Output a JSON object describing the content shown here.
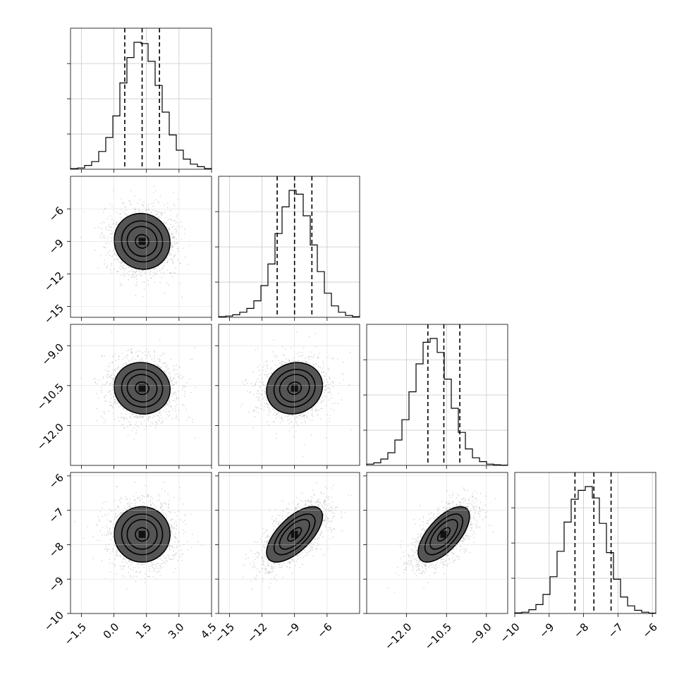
{
  "chart_data": {
    "type": "corner",
    "grid": true,
    "parameters": [
      {
        "id": "p1",
        "range": [
          -2.0,
          4.5
        ],
        "ticks": [
          "-1.5",
          "0.0",
          "1.5",
          "3.0",
          "4.5"
        ],
        "tick_values": [
          -1.5,
          0.0,
          1.5,
          3.0,
          4.5
        ],
        "quantiles": [
          0.5,
          1.3,
          2.1
        ],
        "center": 1.3,
        "sigma": 0.8
      },
      {
        "id": "p2",
        "range": [
          -16.0,
          -3.0
        ],
        "ticks": [
          "-15",
          "-12",
          "-9",
          "-6"
        ],
        "tick_values": [
          -15,
          -12,
          -9,
          -6
        ],
        "quantiles": [
          -10.6,
          -9.0,
          -7.4
        ],
        "center": -9.0,
        "sigma": 1.6
      },
      {
        "id": "p3",
        "range": [
          -13.5,
          -8.2
        ],
        "ticks": [
          "-12.0",
          "-10.5",
          "-9.0"
        ],
        "tick_values": [
          -12.0,
          -10.5,
          -9.0
        ],
        "quantiles": [
          -11.2,
          -10.6,
          -10.0
        ],
        "center": -10.6,
        "sigma": 0.6
      },
      {
        "id": "p4",
        "range": [
          -10.0,
          -5.9
        ],
        "ticks": [
          "-10",
          "-9",
          "-8",
          "-7",
          "-6"
        ],
        "tick_values": [
          -10,
          -9,
          -8,
          -7,
          -6
        ],
        "quantiles": [
          -8.25,
          -7.7,
          -7.2
        ],
        "center": -7.7,
        "sigma": 0.5
      }
    ],
    "histograms": [
      {
        "param": "p1",
        "values": [
          0.005,
          0.01,
          0.03,
          0.06,
          0.14,
          0.25,
          0.42,
          0.68,
          0.88,
          1.0,
          0.99,
          0.85,
          0.66,
          0.45,
          0.27,
          0.15,
          0.08,
          0.04,
          0.02,
          0.005
        ]
      },
      {
        "param": "p2",
        "values": [
          0.005,
          0.01,
          0.02,
          0.04,
          0.07,
          0.13,
          0.25,
          0.42,
          0.66,
          0.87,
          1.0,
          0.97,
          0.8,
          0.57,
          0.36,
          0.19,
          0.09,
          0.04,
          0.015,
          0.005
        ]
      },
      {
        "param": "p3",
        "values": [
          0.01,
          0.02,
          0.05,
          0.1,
          0.2,
          0.36,
          0.58,
          0.8,
          0.97,
          1.0,
          0.89,
          0.68,
          0.45,
          0.26,
          0.13,
          0.06,
          0.03,
          0.01,
          0.005,
          0.002
        ]
      },
      {
        "param": "p4",
        "values": [
          0.005,
          0.01,
          0.03,
          0.07,
          0.15,
          0.29,
          0.49,
          0.72,
          0.9,
          0.97,
          1.0,
          0.91,
          0.71,
          0.48,
          0.27,
          0.13,
          0.06,
          0.025,
          0.01,
          0.003
        ]
      }
    ],
    "pairs": [
      {
        "x": "p1",
        "y": "p2",
        "correlation": -0.05
      },
      {
        "x": "p1",
        "y": "p3",
        "correlation": -0.05
      },
      {
        "x": "p2",
        "y": "p3",
        "correlation": 0.1
      },
      {
        "x": "p1",
        "y": "p4",
        "correlation": 0.0
      },
      {
        "x": "p2",
        "y": "p4",
        "correlation": 0.65
      },
      {
        "x": "p3",
        "y": "p4",
        "correlation": 0.65
      }
    ],
    "contour_levels": [
      0.39,
      0.86,
      1.18,
      1.61
    ]
  }
}
